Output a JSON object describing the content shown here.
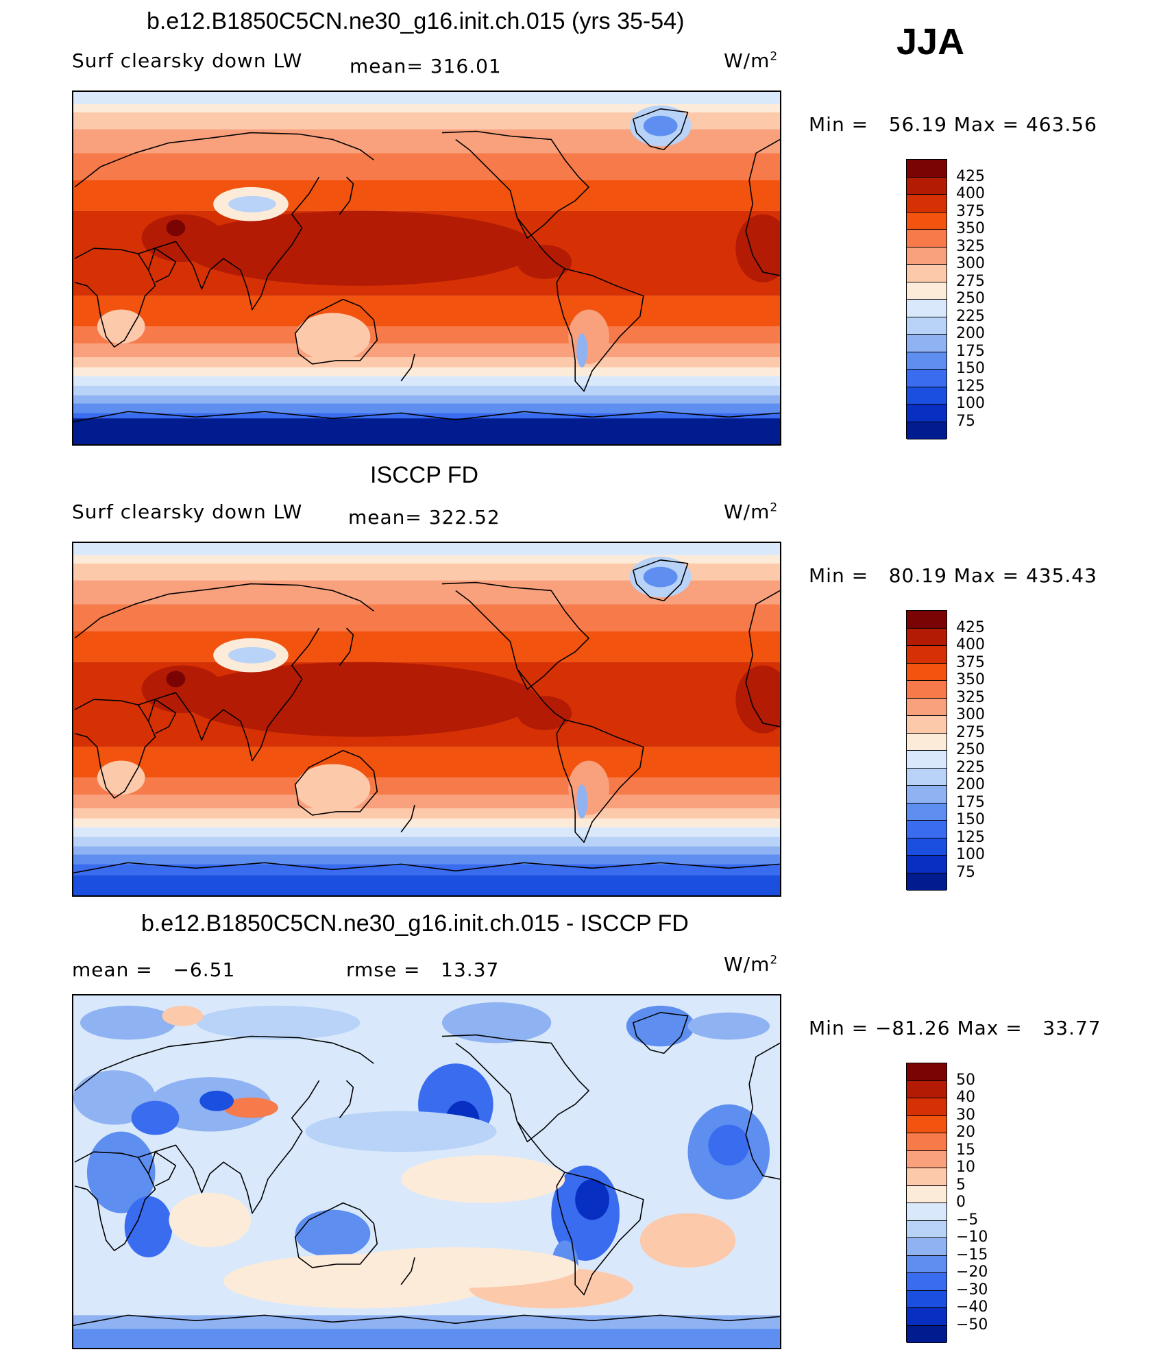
{
  "season": "JJA",
  "panels": [
    {
      "title": "b.e12.B1850C5CN.ne30_g16.init.ch.015 (yrs 35-54)",
      "variable": "Surf clearsky down LW",
      "stat1": "mean= 316.01",
      "stat2": "",
      "units": "W/m",
      "units_sup": "2",
      "minmax": "Min =   56.19 Max = 463.56",
      "legend_labels": [
        "425",
        "400",
        "375",
        "350",
        "325",
        "300",
        "275",
        "250",
        "225",
        "200",
        "175",
        "150",
        "125",
        "100",
        "75"
      ],
      "map_style": "model"
    },
    {
      "title": "ISCCP FD",
      "variable": "Surf clearsky down LW",
      "stat1": "mean= 322.52",
      "stat2": "",
      "units": "W/m",
      "units_sup": "2",
      "minmax": "Min =   80.19 Max = 435.43",
      "legend_labels": [
        "425",
        "400",
        "375",
        "350",
        "325",
        "300",
        "275",
        "250",
        "225",
        "200",
        "175",
        "150",
        "125",
        "100",
        "75"
      ],
      "map_style": "obs"
    },
    {
      "title": "b.e12.B1850C5CN.ne30_g16.init.ch.015 - ISCCP FD",
      "variable": "",
      "stat1": "mean =   −6.51",
      "stat2": "rmse =   13.37",
      "units": "W/m",
      "units_sup": "2",
      "minmax": "Min = −81.26 Max =   33.77",
      "legend_labels": [
        "50",
        "40",
        "30",
        "20",
        "15",
        "10",
        "5",
        "0",
        "−5",
        "−10",
        "−15",
        "−20",
        "−30",
        "−40",
        "−50"
      ],
      "map_style": "diff"
    }
  ],
  "colorscale": [
    "#7a0403",
    "#b31b04",
    "#d63104",
    "#f2530f",
    "#f67a4a",
    "#f9a07c",
    "#fcc9ab",
    "#fdebd9",
    "#d9e9fb",
    "#b8d3f7",
    "#8fb2f2",
    "#5e8ff0",
    "#3a6cf0",
    "#1a4fe0",
    "#0730c2",
    "#001c8f"
  ],
  "colors": {
    "coastline": "#000000",
    "frame": "#000000"
  }
}
